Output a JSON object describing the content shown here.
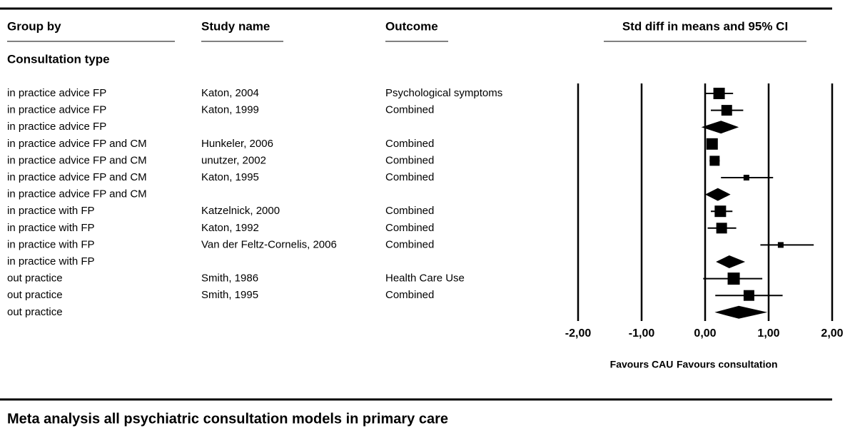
{
  "chart_data": {
    "type": "forest",
    "title": "Meta analysis all psychiatric consultation models in primary care",
    "columns": [
      "Group by",
      "Study name",
      "Outcome",
      "Std diff in means and 95% CI"
    ],
    "section": "Consultation type",
    "groups": [
      "in practice advice FP",
      "in practice advice FP",
      "in practice advice FP",
      "in practice advice FP and CM",
      "in practice advice FP and CM",
      "in practice advice FP and CM",
      "in practice advice FP and CM",
      "in practice with FP",
      "in practice with FP",
      "in practice with FP",
      "in practice with FP",
      "out practice",
      "out practice",
      "out practice"
    ],
    "studies": [
      "Katon, 2004",
      "Katon, 1999",
      null,
      "Hunkeler, 2006",
      "unutzer, 2002",
      "Katon, 1995",
      null,
      "Katzelnick, 2000",
      "Katon, 1992",
      "Van der Feltz-Cornelis, 2006",
      null,
      "Smith, 1986",
      "Smith, 1995",
      null
    ],
    "outcomes": [
      "Psychological symptoms",
      "Combined",
      null,
      "Combined",
      "Combined",
      "Combined",
      null,
      "Combined",
      "Combined",
      "Combined",
      null,
      "Health Care Use",
      "Combined",
      null
    ],
    "values": [
      0.22,
      0.34,
      0.25,
      0.11,
      0.15,
      0.65,
      0.2,
      0.24,
      0.26,
      1.19,
      0.38,
      0.45,
      0.69,
      0.53
    ],
    "lower": [
      0.0,
      0.09,
      -0.06,
      0.03,
      0.07,
      0.25,
      0.0,
      0.09,
      0.04,
      0.87,
      0.17,
      -0.03,
      0.16,
      0.15
    ],
    "upper": [
      0.44,
      0.6,
      0.53,
      0.19,
      0.23,
      1.07,
      0.4,
      0.43,
      0.49,
      1.71,
      0.63,
      0.9,
      1.22,
      0.98
    ],
    "weights": [
      16,
      15,
      null,
      16,
      14,
      8,
      null,
      16,
      15,
      8,
      null,
      17,
      15,
      null
    ],
    "xlim": [
      -2,
      2
    ],
    "xticks": [
      {
        "value": -2,
        "label": "-2,00"
      },
      {
        "value": -1,
        "label": "-1,00"
      },
      {
        "value": 0,
        "label": "0,00"
      },
      {
        "value": 1,
        "label": "1,00"
      },
      {
        "value": 2,
        "label": "2,00"
      }
    ],
    "favours_left": "Favours CAU",
    "favours_right": "Favours consultation",
    "color": "#000000"
  }
}
